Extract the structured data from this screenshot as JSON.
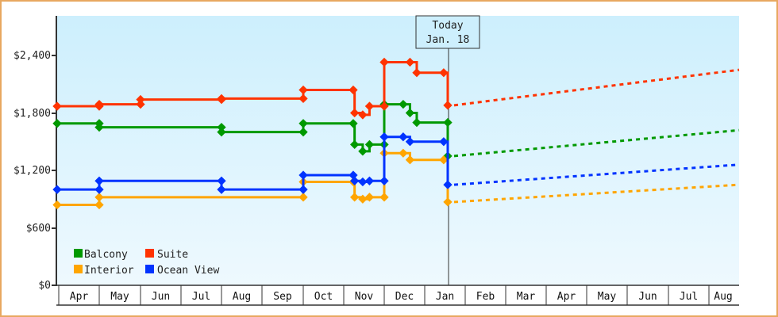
{
  "chart_data": {
    "type": "line",
    "title": "",
    "xlabel": "",
    "ylabel": "",
    "ylim": [
      0,
      2800
    ],
    "yticks": [
      "$0",
      "$600",
      "$1,200",
      "$1,800",
      "$2,400"
    ],
    "ytick_values": [
      0,
      600,
      1200,
      1800,
      2400
    ],
    "grid": false,
    "legend_position": "lower-left",
    "x_categories": [
      "Apr",
      "May",
      "Jun",
      "Jul",
      "Aug",
      "Sep",
      "Oct",
      "Nov",
      "Dec",
      "Jan",
      "Feb",
      "Mar",
      "Apr",
      "May",
      "Jun",
      "Jul",
      "Aug"
    ],
    "annotation": {
      "line1": "Today",
      "line2": "Jan. 18"
    },
    "series": [
      {
        "name": "Balcony",
        "color": "#009900",
        "history": [
          [
            "Apr 1",
            1690
          ],
          [
            "May 1",
            1690
          ],
          [
            "May 1",
            1650
          ],
          [
            "Aug 1",
            1650
          ],
          [
            "Aug 1",
            1600
          ],
          [
            "Oct 1",
            1600
          ],
          [
            "Oct 1",
            1690
          ],
          [
            "Nov 8",
            1690
          ],
          [
            "Nov 9",
            1470
          ],
          [
            "Nov 15",
            1400
          ],
          [
            "Nov 20",
            1470
          ],
          [
            "Dec 1",
            1470
          ],
          [
            "Dec 1",
            1890
          ],
          [
            "Dec 15",
            1890
          ],
          [
            "Dec 20",
            1800
          ],
          [
            "Dec 25",
            1700
          ],
          [
            "Jan 18",
            1700
          ],
          [
            "Jan 18",
            1350
          ]
        ],
        "forecast_start": [
          "Jan 18",
          1350
        ],
        "forecast_end": [
          "Aug 31",
          1620
        ]
      },
      {
        "name": "Suite",
        "color": "#ff3300",
        "history": [
          [
            "Apr 1",
            1870
          ],
          [
            "May 1",
            1870
          ],
          [
            "May 1",
            1890
          ],
          [
            "Jun 1",
            1890
          ],
          [
            "Jun 1",
            1940
          ],
          [
            "Aug 1",
            1940
          ],
          [
            "Aug 1",
            1950
          ],
          [
            "Oct 1",
            1950
          ],
          [
            "Oct 1",
            2040
          ],
          [
            "Nov 8",
            2040
          ],
          [
            "Nov 9",
            1800
          ],
          [
            "Nov 15",
            1780
          ],
          [
            "Nov 20",
            1870
          ],
          [
            "Dec 1",
            1870
          ],
          [
            "Dec 1",
            2330
          ],
          [
            "Dec 20",
            2330
          ],
          [
            "Dec 25",
            2220
          ],
          [
            "Jan 15",
            2220
          ],
          [
            "Jan 18",
            1880
          ]
        ],
        "forecast_start": [
          "Jan 18",
          1880
        ],
        "forecast_end": [
          "Aug 31",
          2250
        ]
      },
      {
        "name": "Interior",
        "color": "#ffa500",
        "history": [
          [
            "Apr 1",
            840
          ],
          [
            "May 1",
            840
          ],
          [
            "May 1",
            920
          ],
          [
            "Oct 1",
            920
          ],
          [
            "Oct 1",
            1080
          ],
          [
            "Nov 8",
            1080
          ],
          [
            "Nov 9",
            920
          ],
          [
            "Nov 15",
            900
          ],
          [
            "Nov 20",
            920
          ],
          [
            "Dec 1",
            920
          ],
          [
            "Dec 1",
            1380
          ],
          [
            "Dec 15",
            1380
          ],
          [
            "Dec 20",
            1310
          ],
          [
            "Jan 15",
            1310
          ],
          [
            "Jan 18",
            870
          ]
        ],
        "forecast_start": [
          "Jan 18",
          870
        ],
        "forecast_end": [
          "Aug 31",
          1050
        ]
      },
      {
        "name": "Ocean View",
        "color": "#0033ff",
        "history": [
          [
            "Apr 1",
            1000
          ],
          [
            "May 1",
            1000
          ],
          [
            "May 1",
            1090
          ],
          [
            "Aug 1",
            1090
          ],
          [
            "Aug 1",
            1000
          ],
          [
            "Oct 1",
            1000
          ],
          [
            "Oct 1",
            1150
          ],
          [
            "Nov 8",
            1150
          ],
          [
            "Nov 9",
            1090
          ],
          [
            "Nov 15",
            1080
          ],
          [
            "Nov 20",
            1090
          ],
          [
            "Dec 1",
            1090
          ],
          [
            "Dec 1",
            1550
          ],
          [
            "Dec 15",
            1550
          ],
          [
            "Dec 20",
            1500
          ],
          [
            "Jan 15",
            1500
          ],
          [
            "Jan 18",
            1050
          ]
        ],
        "forecast_start": [
          "Jan 18",
          1050
        ],
        "forecast_end": [
          "Aug 31",
          1260
        ]
      }
    ]
  },
  "legend": [
    {
      "label": "Balcony",
      "color": "#009900"
    },
    {
      "label": "Suite",
      "color": "#ff3300"
    },
    {
      "label": "Interior",
      "color": "#ffa500"
    },
    {
      "label": "Ocean View",
      "color": "#0033ff"
    }
  ],
  "today": {
    "line1": "Today",
    "line2": "Jan. 18"
  },
  "yaxis": {
    "t0": "$0",
    "t600": "$600",
    "t1200": "$1,200",
    "t1800": "$1,800",
    "t2400": "$2,400"
  },
  "months": [
    "Apr",
    "May",
    "Jun",
    "Jul",
    "Aug",
    "Sep",
    "Oct",
    "Nov",
    "Dec",
    "Jan",
    "Feb",
    "Mar",
    "Apr",
    "May",
    "Jun",
    "Jul",
    "Aug"
  ]
}
